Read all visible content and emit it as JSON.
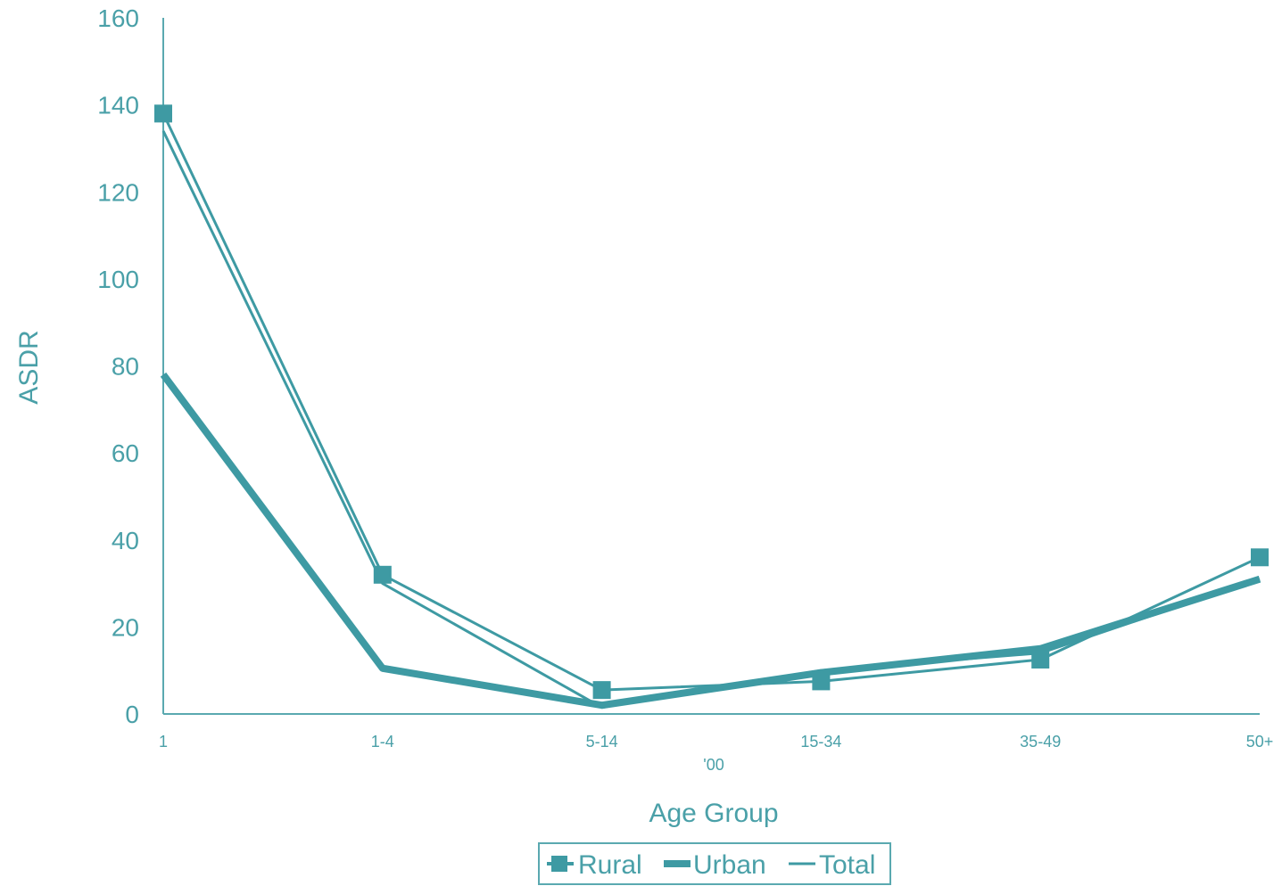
{
  "colors": {
    "series": "#3e9aa3",
    "axis": "#5aa9b0",
    "text": "#4aa0a8"
  },
  "chart_data": {
    "type": "line",
    "xlabel": "Age Group",
    "ylabel": "ASDR",
    "x_note": "'00",
    "categories": [
      "1",
      "1-4",
      "5-14",
      "15-34",
      "35-49",
      "50+"
    ],
    "ylim": [
      0,
      160
    ],
    "yticks": [
      0,
      20,
      40,
      60,
      80,
      100,
      120,
      140,
      160
    ],
    "grid": false,
    "legend_position": "bottom",
    "series": [
      {
        "name": "Rural",
        "values": [
          138,
          32,
          5.5,
          7.5,
          12.5,
          36
        ],
        "marker": "square"
      },
      {
        "name": "Urban",
        "values": [
          78,
          10.5,
          2,
          9.5,
          15,
          31
        ],
        "marker": "none"
      },
      {
        "name": "Total",
        "values": [
          134,
          30,
          1.5,
          10,
          14,
          31
        ],
        "marker": "none"
      }
    ]
  }
}
